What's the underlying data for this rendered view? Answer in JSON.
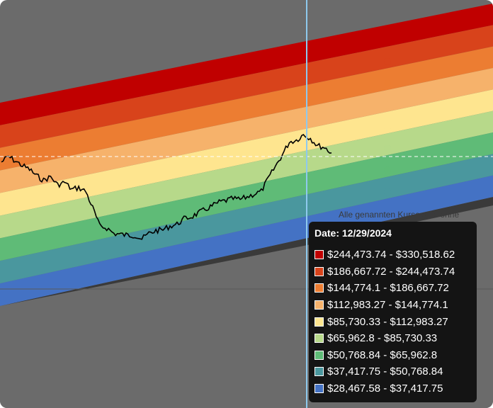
{
  "note_text": "Alle genannten Kurse sind ohne",
  "tooltip": {
    "date_label": "Date: 12/29/2024"
  },
  "chart_data": {
    "type": "area",
    "title": "",
    "xlabel": "",
    "ylabel": "",
    "grid": false,
    "crosshair_date": "12/29/2024",
    "bands": [
      {
        "label": "$244,473.74 - $330,518.62",
        "low": 244473.74,
        "high": 330518.62,
        "color": "#c00000"
      },
      {
        "label": "$186,667.72 - $244,473.74",
        "low": 186667.72,
        "high": 244473.74,
        "color": "#d8431b"
      },
      {
        "label": "$144,774.1 - $186,667.72",
        "low": 144774.1,
        "high": 186667.72,
        "color": "#ec7d32"
      },
      {
        "label": "$112,983.27 - $144,774.1",
        "low": 112983.27,
        "high": 144774.1,
        "color": "#f6b26b"
      },
      {
        "label": "$85,730.33 - $112,983.27",
        "low": 85730.33,
        "high": 112983.27,
        "color": "#fee58f"
      },
      {
        "label": "$65,962.8 - $85,730.33",
        "low": 65962.8,
        "high": 85730.33,
        "color": "#b7d98a"
      },
      {
        "label": "$50,768.84 - $65,962.8",
        "low": 50768.84,
        "high": 65962.8,
        "color": "#5fbb77"
      },
      {
        "label": "$37,417.75 - $50,768.84",
        "low": 37417.75,
        "high": 50768.84,
        "color": "#4a979e"
      },
      {
        "label": "$28,467.58 - $37,417.75",
        "low": 28467.58,
        "high": 37417.75,
        "color": "#4472c4"
      }
    ],
    "price_series": {
      "name": "",
      "color": "#000000",
      "values": [
        100,
        106,
        101,
        96,
        92,
        85,
        80,
        84,
        75,
        78,
        70,
        72,
        68,
        50,
        30,
        28,
        22,
        21,
        20,
        20,
        16,
        22,
        25,
        26,
        30,
        32,
        38,
        40,
        44,
        48,
        52,
        56,
        58,
        60,
        59,
        62,
        65,
        68,
        82,
        95,
        108,
        122,
        124,
        130,
        126,
        118,
        116,
        110
      ]
    },
    "last_price_reference": 98000
  }
}
